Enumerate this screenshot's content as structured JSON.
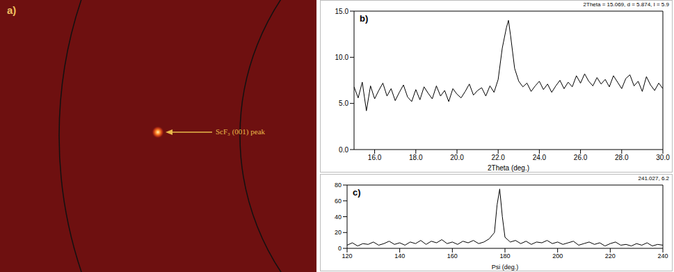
{
  "chart_data": [
    {
      "type": "image",
      "title": "a)",
      "annotations": [
        "ScF₃ (001) peak"
      ]
    },
    {
      "type": "line",
      "title": "b)",
      "subtitle": "2Theta = 15.069, d = 5.874, I = 5.9",
      "x_label": "2Theta (deg.)",
      "color": "#000000",
      "x": [
        15.0,
        15.2,
        15.4,
        15.6,
        15.8,
        16.0,
        16.2,
        16.4,
        16.6,
        16.8,
        17.0,
        17.2,
        17.4,
        17.6,
        17.8,
        18.0,
        18.2,
        18.4,
        18.6,
        18.8,
        19.0,
        19.2,
        19.4,
        19.6,
        19.8,
        20.0,
        20.2,
        20.4,
        20.6,
        20.8,
        21.0,
        21.2,
        21.4,
        21.6,
        21.8,
        22.0,
        22.2,
        22.4,
        22.5,
        22.6,
        22.8,
        23.0,
        23.2,
        23.4,
        23.6,
        23.8,
        24.0,
        24.2,
        24.4,
        24.6,
        24.8,
        25.0,
        25.2,
        25.4,
        25.6,
        25.8,
        26.0,
        26.2,
        26.4,
        26.6,
        26.8,
        27.0,
        27.2,
        27.4,
        27.6,
        27.8,
        28.0,
        28.2,
        28.4,
        28.6,
        28.8,
        29.0,
        29.2,
        29.4,
        29.6,
        29.8,
        30.0
      ],
      "values": [
        6.8,
        5.6,
        7.3,
        4.2,
        6.9,
        5.5,
        6.4,
        7.2,
        5.8,
        6.6,
        5.3,
        6.2,
        7.0,
        5.7,
        5.2,
        6.5,
        5.4,
        6.8,
        6.1,
        5.5,
        6.9,
        5.8,
        6.4,
        5.2,
        6.6,
        6.0,
        5.6,
        6.3,
        7.1,
        5.9,
        6.4,
        6.7,
        5.8,
        6.9,
        6.2,
        7.6,
        11.0,
        13.2,
        14.0,
        12.4,
        8.8,
        7.4,
        6.8,
        7.2,
        6.3,
        6.9,
        7.4,
        6.5,
        7.1,
        6.2,
        6.9,
        7.5,
        6.6,
        7.3,
        6.8,
        8.0,
        7.2,
        8.2,
        7.4,
        6.9,
        7.8,
        7.1,
        7.6,
        6.8,
        8.0,
        7.3,
        6.6,
        7.7,
        8.1,
        6.9,
        7.4,
        6.3,
        7.9,
        7.0,
        6.4,
        7.2,
        6.6
      ],
      "xlim": [
        15,
        30
      ],
      "xticks": [
        {
          "value": 16,
          "label": "16.0"
        },
        {
          "value": 18,
          "label": "18.0"
        },
        {
          "value": 20,
          "label": "20.0"
        },
        {
          "value": 22,
          "label": "22.0"
        },
        {
          "value": 24,
          "label": "24.0"
        },
        {
          "value": 26,
          "label": "26.0"
        },
        {
          "value": 28,
          "label": "28.0"
        },
        {
          "value": 30,
          "label": "30.0"
        }
      ],
      "ylim": [
        0,
        15
      ],
      "yticks": [
        {
          "value": 0,
          "label": "0.0"
        },
        {
          "value": 5,
          "label": "5.0"
        },
        {
          "value": 10,
          "label": "10.0"
        },
        {
          "value": 15,
          "label": "15.0"
        }
      ]
    },
    {
      "type": "line",
      "title": "c)",
      "subtitle": "241.027, 6.2",
      "x_label": "Psi (deg.)",
      "color": "#000000",
      "x": [
        120,
        122,
        124,
        126,
        128,
        130,
        132,
        134,
        136,
        138,
        140,
        142,
        144,
        146,
        148,
        150,
        152,
        154,
        156,
        158,
        160,
        162,
        164,
        166,
        168,
        170,
        172,
        174,
        176,
        177,
        178,
        179,
        180,
        182,
        184,
        186,
        188,
        190,
        192,
        194,
        196,
        198,
        200,
        202,
        204,
        206,
        208,
        210,
        212,
        214,
        216,
        218,
        220,
        222,
        224,
        226,
        228,
        230,
        232,
        234,
        236,
        238,
        240
      ],
      "values": [
        4,
        7,
        3,
        6,
        5,
        8,
        4,
        6,
        9,
        5,
        7,
        4,
        8,
        6,
        10,
        5,
        9,
        7,
        11,
        6,
        8,
        5,
        9,
        7,
        10,
        6,
        8,
        12,
        20,
        55,
        75,
        40,
        14,
        8,
        10,
        6,
        9,
        5,
        8,
        7,
        10,
        6,
        8,
        5,
        7,
        9,
        4,
        6,
        8,
        5,
        7,
        3,
        6,
        8,
        4,
        5,
        3,
        6,
        4,
        7,
        3,
        5,
        4
      ],
      "xlim": [
        120,
        240
      ],
      "xticks": [
        120,
        140,
        160,
        180,
        200,
        220,
        240
      ],
      "ylim": [
        0,
        80
      ],
      "yticks": [
        0,
        20,
        40,
        60,
        80
      ]
    }
  ]
}
